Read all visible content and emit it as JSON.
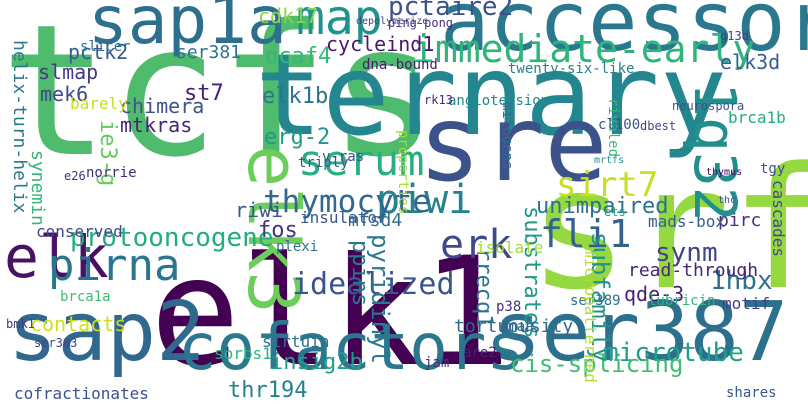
{
  "words": [
    {
      "text": "tcfs",
      "color": "#4fbb6c"
    },
    {
      "text": "elk1",
      "color": "#440154"
    },
    {
      "text": "srf",
      "color": "#95d840"
    },
    {
      "text": "ternary",
      "color": "#24868e"
    },
    {
      "text": "sre",
      "color": "#3b528b"
    },
    {
      "text": "accessory",
      "color": "#2a788e"
    },
    {
      "text": "ser387",
      "color": "#2d708e"
    },
    {
      "text": "sap2",
      "color": "#31688e"
    },
    {
      "text": "elk3",
      "color": "#6ccd5a"
    },
    {
      "text": "sap1a",
      "color": "#2e6f8e"
    },
    {
      "text": "cofactors",
      "color": "#2a778e"
    },
    {
      "text": "elk",
      "color": "#471164"
    },
    {
      "text": "1q32",
      "color": "#21908d"
    },
    {
      "text": "pirna",
      "color": "#2b758e"
    },
    {
      "text": "serum",
      "color": "#28ae80"
    },
    {
      "text": "immediate-early",
      "color": "#2fb47c"
    },
    {
      "text": "erk",
      "color": "#3e4a89"
    },
    {
      "text": "fli1",
      "color": "#33638d"
    },
    {
      "text": "map",
      "color": "#20928c"
    },
    {
      "text": "piwi",
      "color": "#26828e"
    },
    {
      "text": "thymocyte",
      "color": "#31688e"
    },
    {
      "text": "sirt7",
      "color": "#c8e020"
    },
    {
      "text": "protooncogene",
      "color": "#25ab82"
    },
    {
      "text": "idealized",
      "color": "#3a548c"
    },
    {
      "text": "microtube",
      "color": "#1fa187"
    },
    {
      "text": "insig2b",
      "color": "#1f9e89"
    },
    {
      "text": "cis-splicing",
      "color": "#40bd72"
    },
    {
      "text": "thr194",
      "color": "#26828e"
    },
    {
      "text": "synm",
      "color": "#414487"
    },
    {
      "text": "1hbx",
      "color": "#2c728e"
    },
    {
      "text": "pctaire2",
      "color": "#3b528b"
    },
    {
      "text": "cycleind1",
      "color": "#481a6c"
    },
    {
      "text": "dcaf4",
      "color": "#35b779"
    },
    {
      "text": "elk3d",
      "color": "#355f8d"
    },
    {
      "text": "unimpaired",
      "color": "#2c728e"
    },
    {
      "text": "subfamily",
      "color": "#21918c"
    },
    {
      "text": "erg-2",
      "color": "#1f9a8a"
    },
    {
      "text": "elk1b",
      "color": "#2c738e"
    },
    {
      "text": "mtkras",
      "color": "#482475"
    },
    {
      "text": "chimera",
      "color": "#3b528b"
    },
    {
      "text": "st7",
      "color": "#481f70"
    },
    {
      "text": "pctk2",
      "color": "#375b8d"
    },
    {
      "text": "slmap",
      "color": "#443983"
    },
    {
      "text": "mek6",
      "color": "#3e4989"
    },
    {
      "text": "cdk17",
      "color": "#8bd646"
    },
    {
      "text": "ser381",
      "color": "#2c718e"
    },
    {
      "text": "rrecq1",
      "color": "#2b748e"
    },
    {
      "text": "substrates",
      "color": "#1f988b"
    },
    {
      "text": "fos",
      "color": "#46327e"
    },
    {
      "text": "riwi",
      "color": "#38598c"
    },
    {
      "text": "ppins",
      "color": "#2a788e"
    },
    {
      "text": "pyridinyl",
      "color": "#2a788e"
    },
    {
      "text": "mfsd4",
      "color": "#2d708e"
    },
    {
      "text": "qde-3",
      "color": "#482173"
    },
    {
      "text": "read-through",
      "color": "#482475"
    },
    {
      "text": "pirc",
      "color": "#46307e"
    },
    {
      "text": "contacts",
      "color": "#d0e11c"
    },
    {
      "text": "ie3-g",
      "color": "#65cb5e"
    },
    {
      "text": "synemin",
      "color": "#32b67a"
    },
    {
      "text": "helix-turn-helix",
      "color": "#2a788e"
    },
    {
      "text": "tortuousity",
      "color": "#30698e"
    },
    {
      "text": "sorbs1",
      "color": "#2fb47c"
    },
    {
      "text": "sirtuin",
      "color": "#2d708e"
    },
    {
      "text": "cofractionates",
      "color": "#3b528b"
    },
    {
      "text": "mads-box",
      "color": "#34608d"
    },
    {
      "text": "cascades",
      "color": "#3e4c8a"
    },
    {
      "text": "brca1b",
      "color": "#25ab82"
    },
    {
      "text": "motif",
      "color": "#433e85"
    },
    {
      "text": "ser389",
      "color": "#2e6e8e"
    },
    {
      "text": "micropatterned",
      "color": "#b5de2b"
    },
    {
      "text": "conserved",
      "color": "#3f4788"
    },
    {
      "text": "insulator",
      "color": "#38588c"
    },
    {
      "text": "plexi",
      "color": "#2c738e"
    },
    {
      "text": "isolate",
      "color": "#a0da39"
    },
    {
      "text": "triply",
      "color": "#39568c"
    },
    {
      "text": "v-ras",
      "color": "#3c508b"
    },
    {
      "text": "properties",
      "color": "#a2da37"
    },
    {
      "text": "mitogens",
      "color": "#2f6c8e"
    },
    {
      "text": "rivaled",
      "color": "#37b878"
    },
    {
      "text": "dbest",
      "color": "#3f4889"
    },
    {
      "text": "angiotension",
      "color": "#24878e"
    },
    {
      "text": "rk13",
      "color": "#482979"
    },
    {
      "text": "cl100",
      "color": "#3a548c"
    },
    {
      "text": "dna-bound",
      "color": "#481a6c"
    },
    {
      "text": "twenty-six-like",
      "color": "#277f8e"
    },
    {
      "text": "neurospora",
      "color": "#3b528b"
    },
    {
      "text": "lubricin",
      "color": "#2fb47c"
    },
    {
      "text": "are2",
      "color": "#482071"
    },
    {
      "text": "jam",
      "color": "#46337f"
    },
    {
      "text": "smaa",
      "color": "#31678e"
    },
    {
      "text": "barely",
      "color": "#c2df23"
    },
    {
      "text": "norrie",
      "color": "#472c7a"
    },
    {
      "text": "e26",
      "color": "#46327e"
    },
    {
      "text": "brca1a",
      "color": "#3dbc74"
    },
    {
      "text": "bmk1",
      "color": "#443a83"
    },
    {
      "text": "ser383",
      "color": "#404588"
    },
    {
      "text": "shares",
      "color": "#38588c"
    },
    {
      "text": "p38",
      "color": "#46317e"
    },
    {
      "text": "slicer",
      "color": "#2c728e"
    },
    {
      "text": "ping-pong",
      "color": "#472f7d"
    },
    {
      "text": "depolymerize",
      "color": "#424186"
    },
    {
      "text": "g13d",
      "color": "#424086"
    },
    {
      "text": "mrtfs",
      "color": "#21918c"
    },
    {
      "text": "thymus",
      "color": "#46085c"
    },
    {
      "text": "thc",
      "color": "#3b528b"
    },
    {
      "text": "ets",
      "color": "#1fa088"
    },
    {
      "text": "tgy",
      "color": "#3b528b"
    }
  ]
}
